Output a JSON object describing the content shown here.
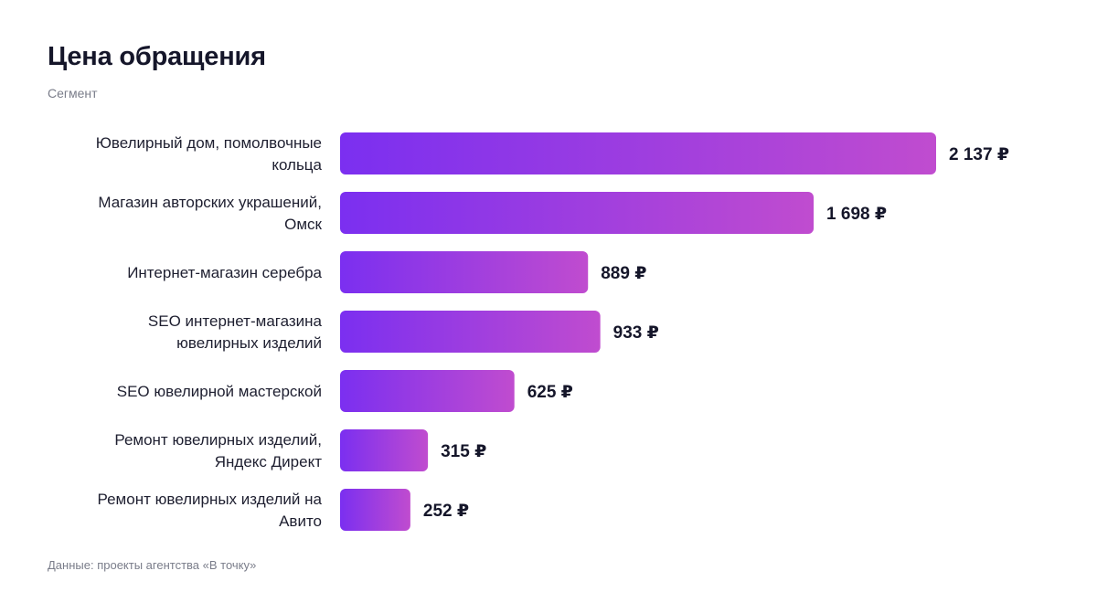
{
  "header": {
    "title": "Цена обращения",
    "subtitle": "Сегмент"
  },
  "footer": {
    "source": "Данные: проекты агентства «В точку»"
  },
  "colors": {
    "bar_start": "#7b2ff0",
    "bar_end": "#c04ccf",
    "text": "#15162a",
    "muted": "#7a7d8a"
  },
  "chart_data": {
    "type": "bar",
    "orientation": "horizontal",
    "title": "Цена обращения",
    "subtitle": "Сегмент",
    "categories": [
      [
        "Ювелирный дом, помолвочные",
        "кольца"
      ],
      [
        "Магазин авторских украшений,",
        "Омск"
      ],
      [
        "Интернет-магазин серебра"
      ],
      [
        "SEO интернет-магазина",
        "ювелирных изделий"
      ],
      [
        "SEO ювелирной мастерской"
      ],
      [
        "Ремонт ювелирных изделий,",
        "Яндекс Директ"
      ],
      [
        "Ремонт ювелирных изделий на",
        "Авито"
      ]
    ],
    "values": [
      2137,
      1698,
      889,
      933,
      625,
      315,
      252
    ],
    "value_labels": [
      "2 137 ₽",
      "1 698 ₽",
      "889 ₽",
      "933 ₽",
      "625 ₽",
      "315 ₽",
      "252 ₽"
    ],
    "grid": false,
    "legend": "none"
  }
}
